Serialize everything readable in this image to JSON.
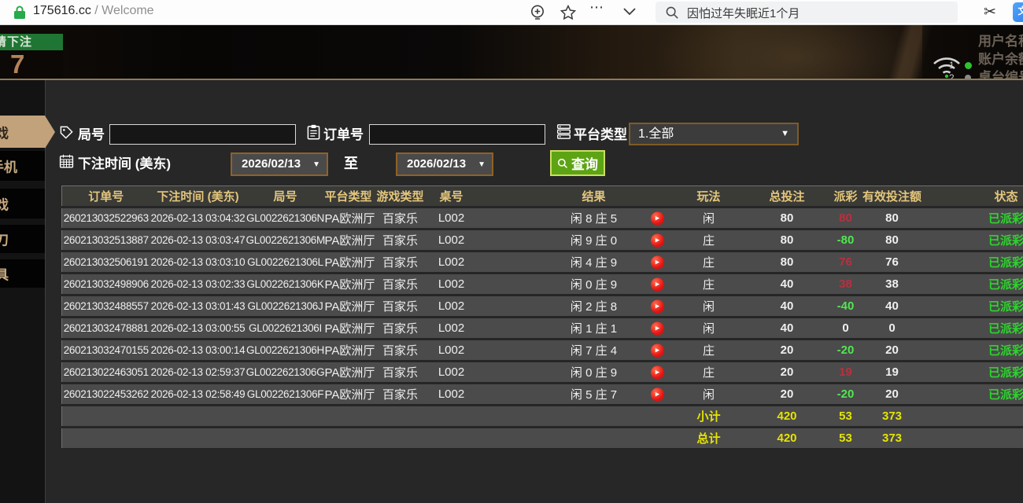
{
  "browser": {
    "site": "175616.cc",
    "path_suffix": " / Welcome",
    "search_text": "因怕过年失眠近1个月"
  },
  "video_overlay": {
    "bet_status": "请下注",
    "countdown": "7",
    "stream_line_1": "1",
    "stream_line_2": "2",
    "menu_labels": [
      "用户名称",
      "账户余额",
      "桌台编号"
    ]
  },
  "sidebar": {
    "tabs": [
      {
        "label": "戏",
        "active": true
      },
      {
        "label": "手机",
        "active": false
      },
      {
        "label": "戏",
        "active": false
      },
      {
        "label": "刀",
        "active": false
      },
      {
        "label": "具",
        "active": false
      }
    ]
  },
  "filters": {
    "round_label": "局号",
    "round_value": "",
    "order_label": "订单号",
    "order_value": "",
    "platform_label": "平台类型",
    "platform_value": "1.全部",
    "time_label": "下注时间 (美东)",
    "date_from": "2026/02/13",
    "to_label": "至",
    "date_to": "2026/02/13",
    "query_label": "查询"
  },
  "table": {
    "headers": [
      "订单号",
      "下注时间 (美东)",
      "局号",
      "平台类型",
      "游戏类型",
      "桌号",
      "结果",
      "玩法",
      "总投注",
      "派彩",
      "有效投注额",
      "状态"
    ],
    "rows": [
      {
        "order": "260213032522963",
        "time": "2026-02-13 03:04:32",
        "round": "GL0022621306N",
        "platform": "PA欧洲厅",
        "game": "百家乐",
        "table": "L002",
        "result": "闲 8 庄 5",
        "bet_side": "闲",
        "total": "80",
        "payout": "80",
        "payout_type": "win",
        "valid": "80",
        "status": "已派彩"
      },
      {
        "order": "260213032513887",
        "time": "2026-02-13 03:03:47",
        "round": "GL0022621306M",
        "platform": "PA欧洲厅",
        "game": "百家乐",
        "table": "L002",
        "result": "闲 9 庄 0",
        "bet_side": "庄",
        "total": "80",
        "payout": "-80",
        "payout_type": "loss",
        "valid": "80",
        "status": "已派彩"
      },
      {
        "order": "260213032506191",
        "time": "2026-02-13 03:03:10",
        "round": "GL0022621306L",
        "platform": "PA欧洲厅",
        "game": "百家乐",
        "table": "L002",
        "result": "闲 4 庄 9",
        "bet_side": "庄",
        "total": "80",
        "payout": "76",
        "payout_type": "win",
        "valid": "76",
        "status": "已派彩"
      },
      {
        "order": "260213032498906",
        "time": "2026-02-13 03:02:33",
        "round": "GL0022621306K",
        "platform": "PA欧洲厅",
        "game": "百家乐",
        "table": "L002",
        "result": "闲 0 庄 9",
        "bet_side": "庄",
        "total": "40",
        "payout": "38",
        "payout_type": "win",
        "valid": "38",
        "status": "已派彩"
      },
      {
        "order": "260213032488557",
        "time": "2026-02-13 03:01:43",
        "round": "GL0022621306J",
        "platform": "PA欧洲厅",
        "game": "百家乐",
        "table": "L002",
        "result": "闲 2 庄 8",
        "bet_side": "闲",
        "total": "40",
        "payout": "-40",
        "payout_type": "loss",
        "valid": "40",
        "status": "已派彩"
      },
      {
        "order": "260213032478881",
        "time": "2026-02-13 03:00:55",
        "round": "GL0022621306I",
        "platform": "PA欧洲厅",
        "game": "百家乐",
        "table": "L002",
        "result": "闲 1 庄 1",
        "bet_side": "闲",
        "total": "40",
        "payout": "0",
        "payout_type": "zero",
        "valid": "0",
        "status": "已派彩"
      },
      {
        "order": "260213032470155",
        "time": "2026-02-13 03:00:14",
        "round": "GL0022621306H",
        "platform": "PA欧洲厅",
        "game": "百家乐",
        "table": "L002",
        "result": "闲 7 庄 4",
        "bet_side": "庄",
        "total": "20",
        "payout": "-20",
        "payout_type": "loss",
        "valid": "20",
        "status": "已派彩"
      },
      {
        "order": "260213022463051",
        "time": "2026-02-13 02:59:37",
        "round": "GL0022621306G",
        "platform": "PA欧洲厅",
        "game": "百家乐",
        "table": "L002",
        "result": "闲 0 庄 9",
        "bet_side": "庄",
        "total": "20",
        "payout": "19",
        "payout_type": "win",
        "valid": "19",
        "status": "已派彩"
      },
      {
        "order": "260213022453262",
        "time": "2026-02-13 02:58:49",
        "round": "GL0022621306F",
        "platform": "PA欧洲厅",
        "game": "百家乐",
        "table": "L002",
        "result": "闲 5 庄 7",
        "bet_side": "闲",
        "total": "20",
        "payout": "-20",
        "payout_type": "loss",
        "valid": "20",
        "status": "已派彩"
      }
    ],
    "subtotal": {
      "label": "小计",
      "total": "420",
      "payout": "53",
      "valid": "373"
    },
    "grand_total": {
      "label": "总计",
      "total": "420",
      "payout": "53",
      "valid": "373"
    }
  },
  "colors": {
    "header_text": "#e3c67c",
    "payout_positive": "#b8303f",
    "payout_negative": "#50e750",
    "status_green": "#2dd42d",
    "summary_yellow": "#e4e400",
    "query_button_green": "#5da414",
    "active_tab_tan": "#c2a27b",
    "date_border_brown": "#8f6226"
  }
}
